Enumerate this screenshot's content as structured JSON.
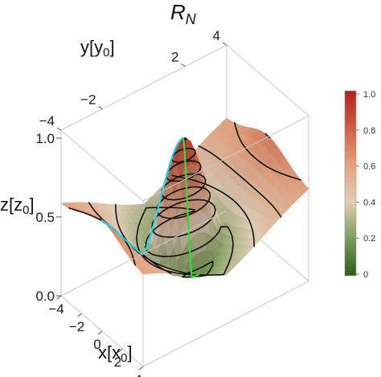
{
  "chart_data": {
    "type": "surface3d",
    "title": "R",
    "title_sub": "N",
    "x_axis": {
      "label": "x",
      "unit": "x",
      "unit_sub": "0",
      "ticks": [
        -4,
        -2,
        0,
        2,
        4
      ],
      "range": [
        -4,
        4
      ]
    },
    "y_axis": {
      "label": "y",
      "unit": "y",
      "unit_sub": "0",
      "ticks": [
        -4,
        -2,
        2,
        4
      ],
      "range": [
        -4,
        4
      ]
    },
    "z_axis": {
      "label": "z",
      "unit": "z",
      "unit_sub": "0",
      "ticks": [
        "0.0",
        "0.5",
        "1.0"
      ],
      "range": [
        0,
        1.05
      ]
    },
    "colorbar": {
      "range": [
        0,
        1
      ],
      "ticks": [
        "0",
        "0.2",
        "0.4",
        "0.6",
        "0.8",
        "1.0"
      ],
      "colors": [
        "#2f5a1c",
        "#7d9c5a",
        "#e0cdb6",
        "#e4a17e",
        "#cf5f45",
        "#b31e22"
      ]
    },
    "contour_levels": [
      0.1,
      0.2,
      0.3,
      0.4,
      0.5,
      0.6,
      0.7,
      0.8,
      0.9
    ],
    "curves": [
      {
        "name": "cyan",
        "color": "#22d3e6"
      },
      {
        "name": "green",
        "color": "#32dc32"
      }
    ]
  }
}
